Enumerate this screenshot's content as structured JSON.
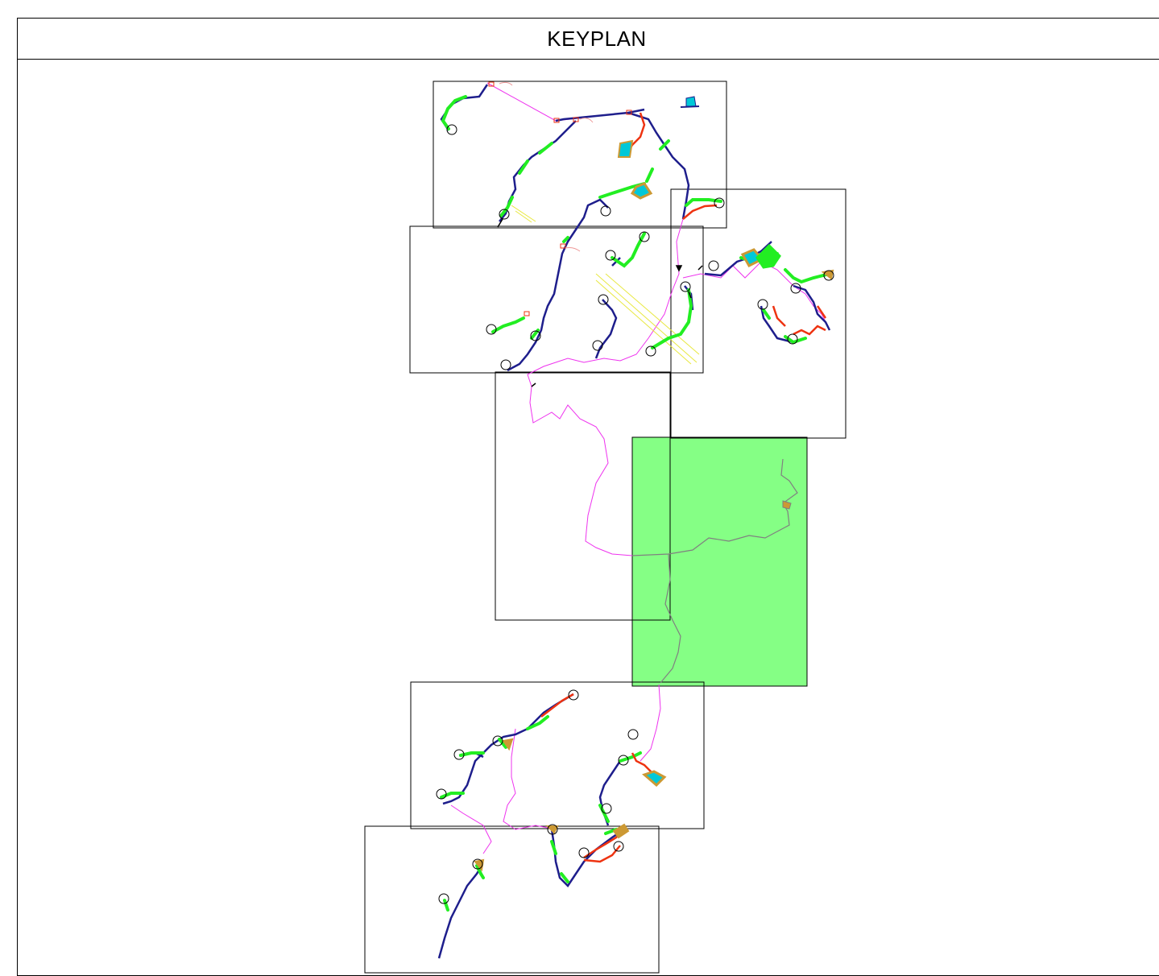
{
  "title": "KEYPLAN",
  "colors": {
    "road": "#1e1e8c",
    "green_segment": "#22ee22",
    "red_segment": "#ee3311",
    "orange_fill": "#cc9933",
    "water": "#00c8d8",
    "boundary_line": "#ee33ee",
    "highlight_sheet": "#33ff33",
    "gray_route": "#808080",
    "yellow_lines": "#e8e840"
  },
  "sheets": [
    {
      "name": "sheet-1",
      "highlighted": false
    },
    {
      "name": "sheet-2",
      "highlighted": false
    },
    {
      "name": "sheet-3",
      "highlighted": false
    },
    {
      "name": "sheet-4",
      "highlighted": false
    },
    {
      "name": "sheet-5-current",
      "highlighted": true
    },
    {
      "name": "sheet-6",
      "highlighted": false
    },
    {
      "name": "sheet-7",
      "highlighted": false
    }
  ]
}
